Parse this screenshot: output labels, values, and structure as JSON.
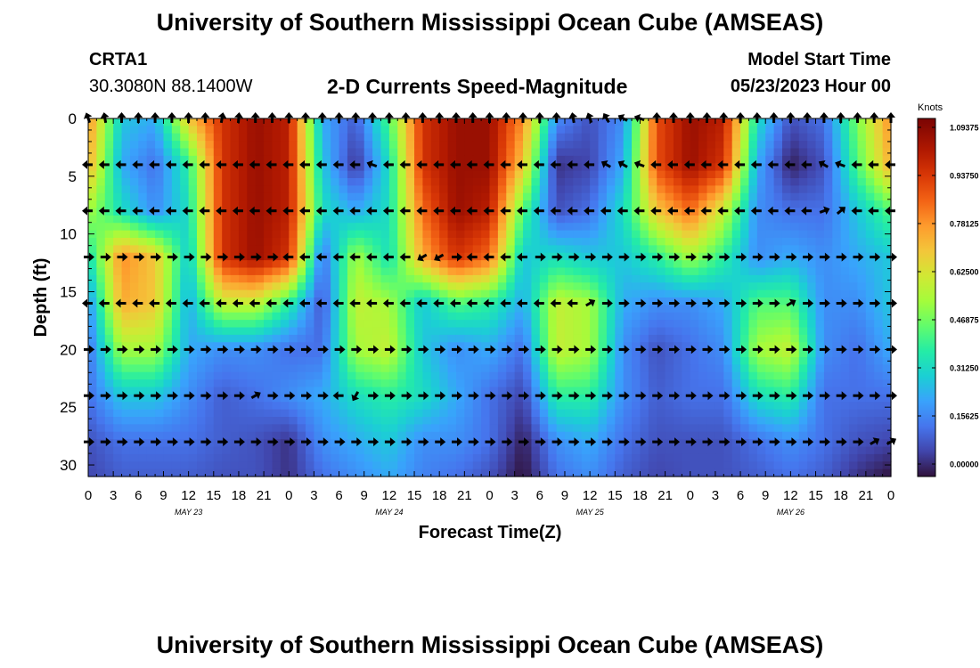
{
  "header": {
    "title": "University of Southern Mississippi Ocean Cube (AMSEAS)",
    "station": "CRTA1",
    "coords": "30.3080N  88.1400W",
    "subtitle": "2-D Currents Speed-Magnitude",
    "model_start_label": "Model Start Time",
    "model_start_value": "05/23/2023 Hour 00"
  },
  "footer": {
    "title": "University of Southern Mississippi Ocean Cube (AMSEAS)"
  },
  "chart_data": {
    "type": "heatmap",
    "title": "2-D Currents Speed-Magnitude",
    "xlabel": "Forecast Time(Z)",
    "ylabel": "Depth (ft)",
    "xlim": [
      0,
      96
    ],
    "ylim": [
      31,
      0
    ],
    "x_tick_labels": [
      "0",
      "3",
      "6",
      "9",
      "12",
      "15",
      "18",
      "21",
      "0",
      "3",
      "6",
      "9",
      "12",
      "15",
      "18",
      "21",
      "0",
      "3",
      "6",
      "9",
      "12",
      "15",
      "18",
      "21",
      "0",
      "3",
      "6",
      "9",
      "12",
      "15",
      "18",
      "21",
      "0"
    ],
    "y_ticks": [
      0,
      5,
      10,
      15,
      20,
      25,
      30
    ],
    "date_labels": [
      {
        "label": "MAY 23",
        "hour": 12
      },
      {
        "label": "MAY 24",
        "hour": 36
      },
      {
        "label": "MAY 25",
        "hour": 60
      },
      {
        "label": "MAY 26",
        "hour": 84
      }
    ],
    "colorbar": {
      "unit": "Knots",
      "min": 0.0,
      "max": 1.09375,
      "tick_labels": [
        "1.09375",
        "0.93750",
        "0.78125",
        "0.62500",
        "0.46875",
        "0.31250",
        "0.15625",
        "0.00000"
      ]
    },
    "grid_hours": [
      0,
      4,
      8,
      12,
      16,
      20,
      24,
      28,
      32,
      36,
      40,
      44,
      48,
      52,
      56,
      60,
      64,
      68,
      72,
      76,
      80,
      84,
      88,
      92,
      96
    ],
    "grid_depths": [
      0,
      4,
      8,
      12,
      16,
      20,
      24,
      28,
      31
    ],
    "speed": [
      [
        0.8,
        0.3,
        0.25,
        0.7,
        0.95,
        1.05,
        1.0,
        0.25,
        0.12,
        0.45,
        0.95,
        1.05,
        1.05,
        0.8,
        0.2,
        0.1,
        0.2,
        0.9,
        1.05,
        1.0,
        0.35,
        0.1,
        0.15,
        0.5,
        0.8
      ],
      [
        0.75,
        0.25,
        0.15,
        0.4,
        0.95,
        1.05,
        1.0,
        0.3,
        0.05,
        0.35,
        0.95,
        1.05,
        1.05,
        0.7,
        0.05,
        0.08,
        0.25,
        0.9,
        1.05,
        0.95,
        0.25,
        0.02,
        0.1,
        0.45,
        0.75
      ],
      [
        0.55,
        0.35,
        0.2,
        0.35,
        0.95,
        1.05,
        1.0,
        0.35,
        0.25,
        0.35,
        0.85,
        1.05,
        1.0,
        0.45,
        0.1,
        0.15,
        0.35,
        0.7,
        0.85,
        0.6,
        0.2,
        0.15,
        0.15,
        0.3,
        0.45
      ],
      [
        0.35,
        0.8,
        0.7,
        0.3,
        0.95,
        1.05,
        0.95,
        0.15,
        0.55,
        0.35,
        0.75,
        0.95,
        0.85,
        0.3,
        0.35,
        0.3,
        0.3,
        0.4,
        0.55,
        0.4,
        0.2,
        0.25,
        0.2,
        0.25,
        0.3
      ],
      [
        0.2,
        0.75,
        0.7,
        0.25,
        0.6,
        0.6,
        0.4,
        0.1,
        0.6,
        0.55,
        0.3,
        0.45,
        0.4,
        0.25,
        0.6,
        0.55,
        0.25,
        0.2,
        0.2,
        0.25,
        0.45,
        0.45,
        0.2,
        0.2,
        0.3
      ],
      [
        0.15,
        0.55,
        0.55,
        0.25,
        0.2,
        0.2,
        0.15,
        0.15,
        0.55,
        0.6,
        0.3,
        0.2,
        0.25,
        0.15,
        0.6,
        0.55,
        0.2,
        0.1,
        0.15,
        0.2,
        0.55,
        0.6,
        0.2,
        0.15,
        0.25
      ],
      [
        0.15,
        0.3,
        0.3,
        0.2,
        0.12,
        0.15,
        0.2,
        0.25,
        0.35,
        0.4,
        0.35,
        0.25,
        0.15,
        0.08,
        0.4,
        0.4,
        0.2,
        0.12,
        0.15,
        0.15,
        0.35,
        0.4,
        0.15,
        0.15,
        0.15
      ],
      [
        0.1,
        0.15,
        0.15,
        0.15,
        0.12,
        0.1,
        0.05,
        0.2,
        0.25,
        0.3,
        0.2,
        0.2,
        0.15,
        0.02,
        0.2,
        0.25,
        0.15,
        0.1,
        0.1,
        0.1,
        0.15,
        0.2,
        0.15,
        0.1,
        0.08
      ],
      [
        0.08,
        0.12,
        0.12,
        0.12,
        0.1,
        0.1,
        0.05,
        0.15,
        0.2,
        0.25,
        0.18,
        0.15,
        0.1,
        0.0,
        0.15,
        0.2,
        0.12,
        0.08,
        0.1,
        0.1,
        0.12,
        0.15,
        0.12,
        0.05,
        0.0
      ]
    ],
    "vector_hours": [
      0,
      2,
      4,
      6,
      8,
      10,
      12,
      14,
      16,
      18,
      20,
      22,
      24,
      26,
      28,
      30,
      32,
      34,
      36,
      38,
      40,
      42,
      44,
      46,
      48,
      50,
      52,
      54,
      56,
      58,
      60,
      62,
      64,
      66,
      68,
      70,
      72,
      74,
      76,
      78,
      80,
      82,
      84,
      86,
      88,
      90,
      92,
      94,
      96
    ],
    "vector_depths": [
      0,
      4,
      8,
      12,
      16,
      20,
      24,
      28
    ],
    "vector_dir_deg": [
      [
        250,
        260,
        270,
        270,
        270,
        270,
        270,
        270,
        280,
        275,
        270,
        270,
        270,
        270,
        270,
        270,
        270,
        270,
        270,
        270,
        270,
        270,
        270,
        270,
        270,
        270,
        270,
        270,
        270,
        260,
        250,
        240,
        210,
        200,
        270,
        270,
        270,
        270,
        270,
        270,
        270,
        270,
        270,
        270,
        270,
        270,
        270,
        270,
        270
      ],
      [
        180,
        180,
        180,
        180,
        180,
        180,
        180,
        180,
        180,
        180,
        180,
        180,
        180,
        180,
        180,
        180,
        180,
        200,
        180,
        180,
        180,
        180,
        180,
        180,
        180,
        180,
        180,
        180,
        180,
        180,
        180,
        210,
        210,
        200,
        180,
        180,
        180,
        180,
        180,
        180,
        180,
        180,
        180,
        180,
        210,
        200,
        180,
        180,
        180
      ],
      [
        180,
        180,
        180,
        180,
        180,
        180,
        180,
        180,
        180,
        180,
        180,
        180,
        180,
        180,
        180,
        180,
        180,
        180,
        180,
        180,
        180,
        180,
        180,
        180,
        180,
        180,
        180,
        180,
        180,
        180,
        180,
        180,
        180,
        180,
        180,
        180,
        180,
        180,
        180,
        180,
        180,
        180,
        180,
        180,
        340,
        320,
        180,
        180,
        180
      ],
      [
        0,
        0,
        0,
        0,
        0,
        0,
        0,
        0,
        0,
        0,
        0,
        0,
        180,
        180,
        180,
        180,
        180,
        180,
        180,
        180,
        150,
        150,
        0,
        180,
        180,
        180,
        180,
        0,
        0,
        0,
        0,
        0,
        0,
        0,
        0,
        0,
        0,
        0,
        0,
        0,
        0,
        0,
        0,
        0,
        0,
        0,
        0,
        0,
        0
      ],
      [
        180,
        180,
        180,
        180,
        180,
        180,
        180,
        180,
        180,
        180,
        180,
        180,
        180,
        180,
        180,
        180,
        180,
        180,
        180,
        180,
        180,
        180,
        180,
        180,
        180,
        180,
        180,
        180,
        180,
        180,
        330,
        0,
        0,
        0,
        0,
        0,
        0,
        0,
        0,
        0,
        0,
        0,
        330,
        0,
        0,
        0,
        0,
        0,
        0
      ],
      [
        0,
        0,
        0,
        0,
        0,
        0,
        0,
        0,
        0,
        0,
        0,
        0,
        0,
        0,
        0,
        0,
        0,
        0,
        0,
        0,
        0,
        0,
        0,
        0,
        0,
        0,
        0,
        0,
        0,
        0,
        0,
        0,
        0,
        0,
        0,
        0,
        0,
        0,
        0,
        0,
        0,
        0,
        0,
        0,
        0,
        0,
        0,
        0,
        0
      ],
      [
        0,
        0,
        0,
        0,
        0,
        0,
        0,
        0,
        0,
        0,
        330,
        0,
        0,
        0,
        0,
        180,
        120,
        0,
        0,
        0,
        0,
        0,
        0,
        0,
        0,
        0,
        0,
        0,
        0,
        0,
        0,
        0,
        0,
        0,
        0,
        0,
        0,
        0,
        0,
        0,
        0,
        0,
        0,
        0,
        0,
        0,
        0,
        0,
        0
      ],
      [
        0,
        0,
        0,
        0,
        0,
        0,
        0,
        0,
        0,
        0,
        0,
        0,
        0,
        0,
        0,
        0,
        0,
        0,
        0,
        0,
        0,
        0,
        0,
        0,
        0,
        0,
        0,
        0,
        0,
        0,
        0,
        0,
        0,
        0,
        0,
        0,
        0,
        0,
        0,
        0,
        0,
        0,
        0,
        0,
        0,
        0,
        0,
        330,
        330
      ]
    ]
  }
}
